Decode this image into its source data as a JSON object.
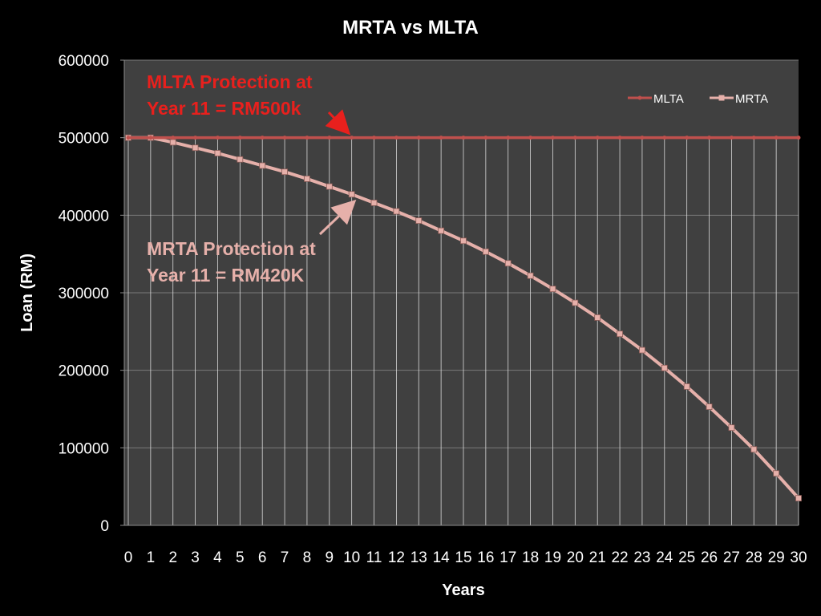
{
  "chart_data": {
    "type": "line",
    "title": "MRTA vs MLTA",
    "xlabel": "Years",
    "ylabel": "Loan (RM)",
    "x": [
      0,
      1,
      2,
      3,
      4,
      5,
      6,
      7,
      8,
      9,
      10,
      11,
      12,
      13,
      14,
      15,
      16,
      17,
      18,
      19,
      20,
      21,
      22,
      23,
      24,
      25,
      26,
      27,
      28,
      29,
      30
    ],
    "ylim": [
      0,
      600000
    ],
    "yticks": [
      0,
      100000,
      200000,
      300000,
      400000,
      500000,
      600000
    ],
    "grid": true,
    "drop_lines": true,
    "legend": "top-right",
    "series": [
      {
        "name": "MLTA",
        "color": "#c0504d",
        "marker": "circle",
        "values": [
          500000,
          500000,
          500000,
          500000,
          500000,
          500000,
          500000,
          500000,
          500000,
          500000,
          500000,
          500000,
          500000,
          500000,
          500000,
          500000,
          500000,
          500000,
          500000,
          500000,
          500000,
          500000,
          500000,
          500000,
          500000,
          500000,
          500000,
          500000,
          500000,
          500000,
          500000
        ]
      },
      {
        "name": "MRTA",
        "color": "#e6b0aa",
        "marker": "square",
        "values": [
          500000,
          500000,
          494000,
          487000,
          480000,
          472000,
          464000,
          456000,
          447000,
          437000,
          427000,
          416000,
          405000,
          393000,
          380000,
          367000,
          353000,
          338000,
          322000,
          305000,
          287000,
          268000,
          247000,
          226000,
          203000,
          179000,
          153000,
          126000,
          98000,
          67000,
          35000
        ]
      }
    ],
    "annotations": [
      {
        "id": "mlta",
        "lines": [
          "MLTA Protection at",
          "Year 11 = RM500k"
        ],
        "color": "#e8201d",
        "target_x": 10,
        "target_series": 0
      },
      {
        "id": "mrta",
        "lines": [
          "MRTA Protection at",
          "Year 11 = RM420K"
        ],
        "color": "#e6b0aa",
        "target_x": 10,
        "target_series": 1
      }
    ]
  }
}
